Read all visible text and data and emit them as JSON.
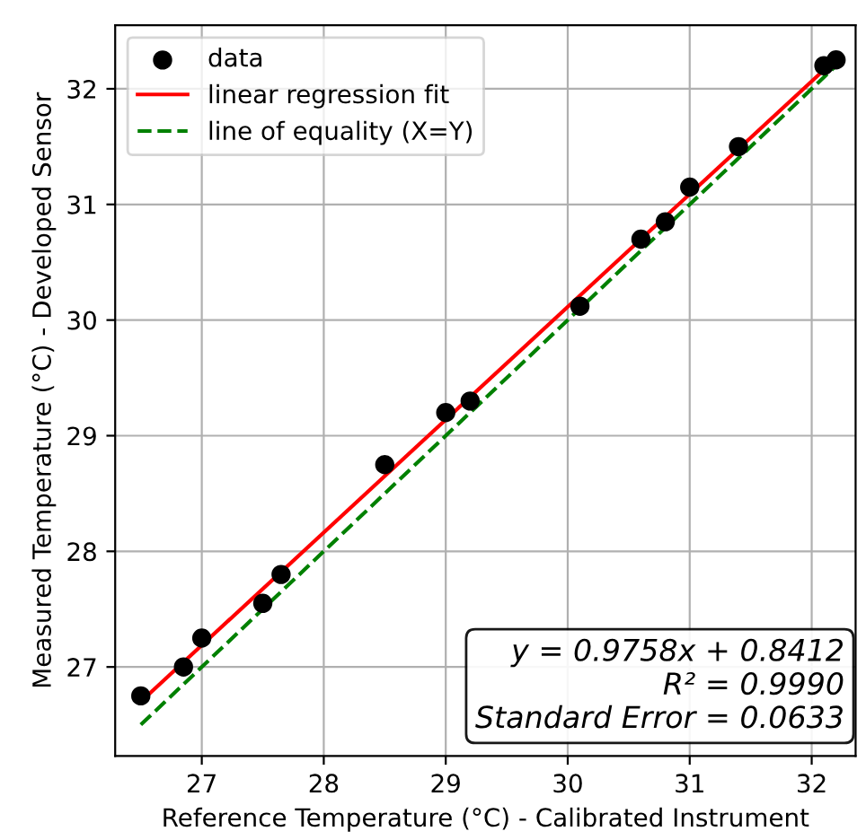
{
  "chart_data": {
    "type": "scatter",
    "xlabel": "Reference Temperature (°C) - Calibrated Instrument",
    "ylabel": "Measured Temperature (°C) - Developed Sensor",
    "series": [
      {
        "name": "data",
        "color": "#000000",
        "marker": "circle",
        "x": [
          26.5,
          26.85,
          27.0,
          27.5,
          27.65,
          28.5,
          29.0,
          29.2,
          30.1,
          30.6,
          30.8,
          31.0,
          31.4,
          32.1,
          32.2
        ],
        "values": [
          26.75,
          27.0,
          27.25,
          27.55,
          27.8,
          28.75,
          29.2,
          29.3,
          30.12,
          30.7,
          30.85,
          31.15,
          31.5,
          32.2,
          32.25
        ]
      },
      {
        "name": "linear regression fit",
        "type": "line",
        "color": "#ff0000",
        "line_style": "solid",
        "x": [
          26.5,
          32.2
        ],
        "values": [
          26.7,
          32.26
        ]
      },
      {
        "name": "line of equality (X=Y)",
        "type": "line",
        "color": "#008000",
        "line_style": "dashed",
        "x": [
          26.5,
          32.2
        ],
        "values": [
          26.5,
          32.2
        ]
      }
    ],
    "annotations": [
      "y = 0.9758x + 0.8412\nR² = 0.9990\nStandard Error = 0.0633"
    ],
    "xlim": [
      26.29,
      32.36
    ],
    "ylim": [
      26.23,
      32.55
    ],
    "xticks": [
      27,
      28,
      29,
      30,
      31,
      32
    ],
    "yticks": [
      27,
      28,
      29,
      30,
      31,
      32
    ],
    "grid": true,
    "legend": "top left"
  }
}
